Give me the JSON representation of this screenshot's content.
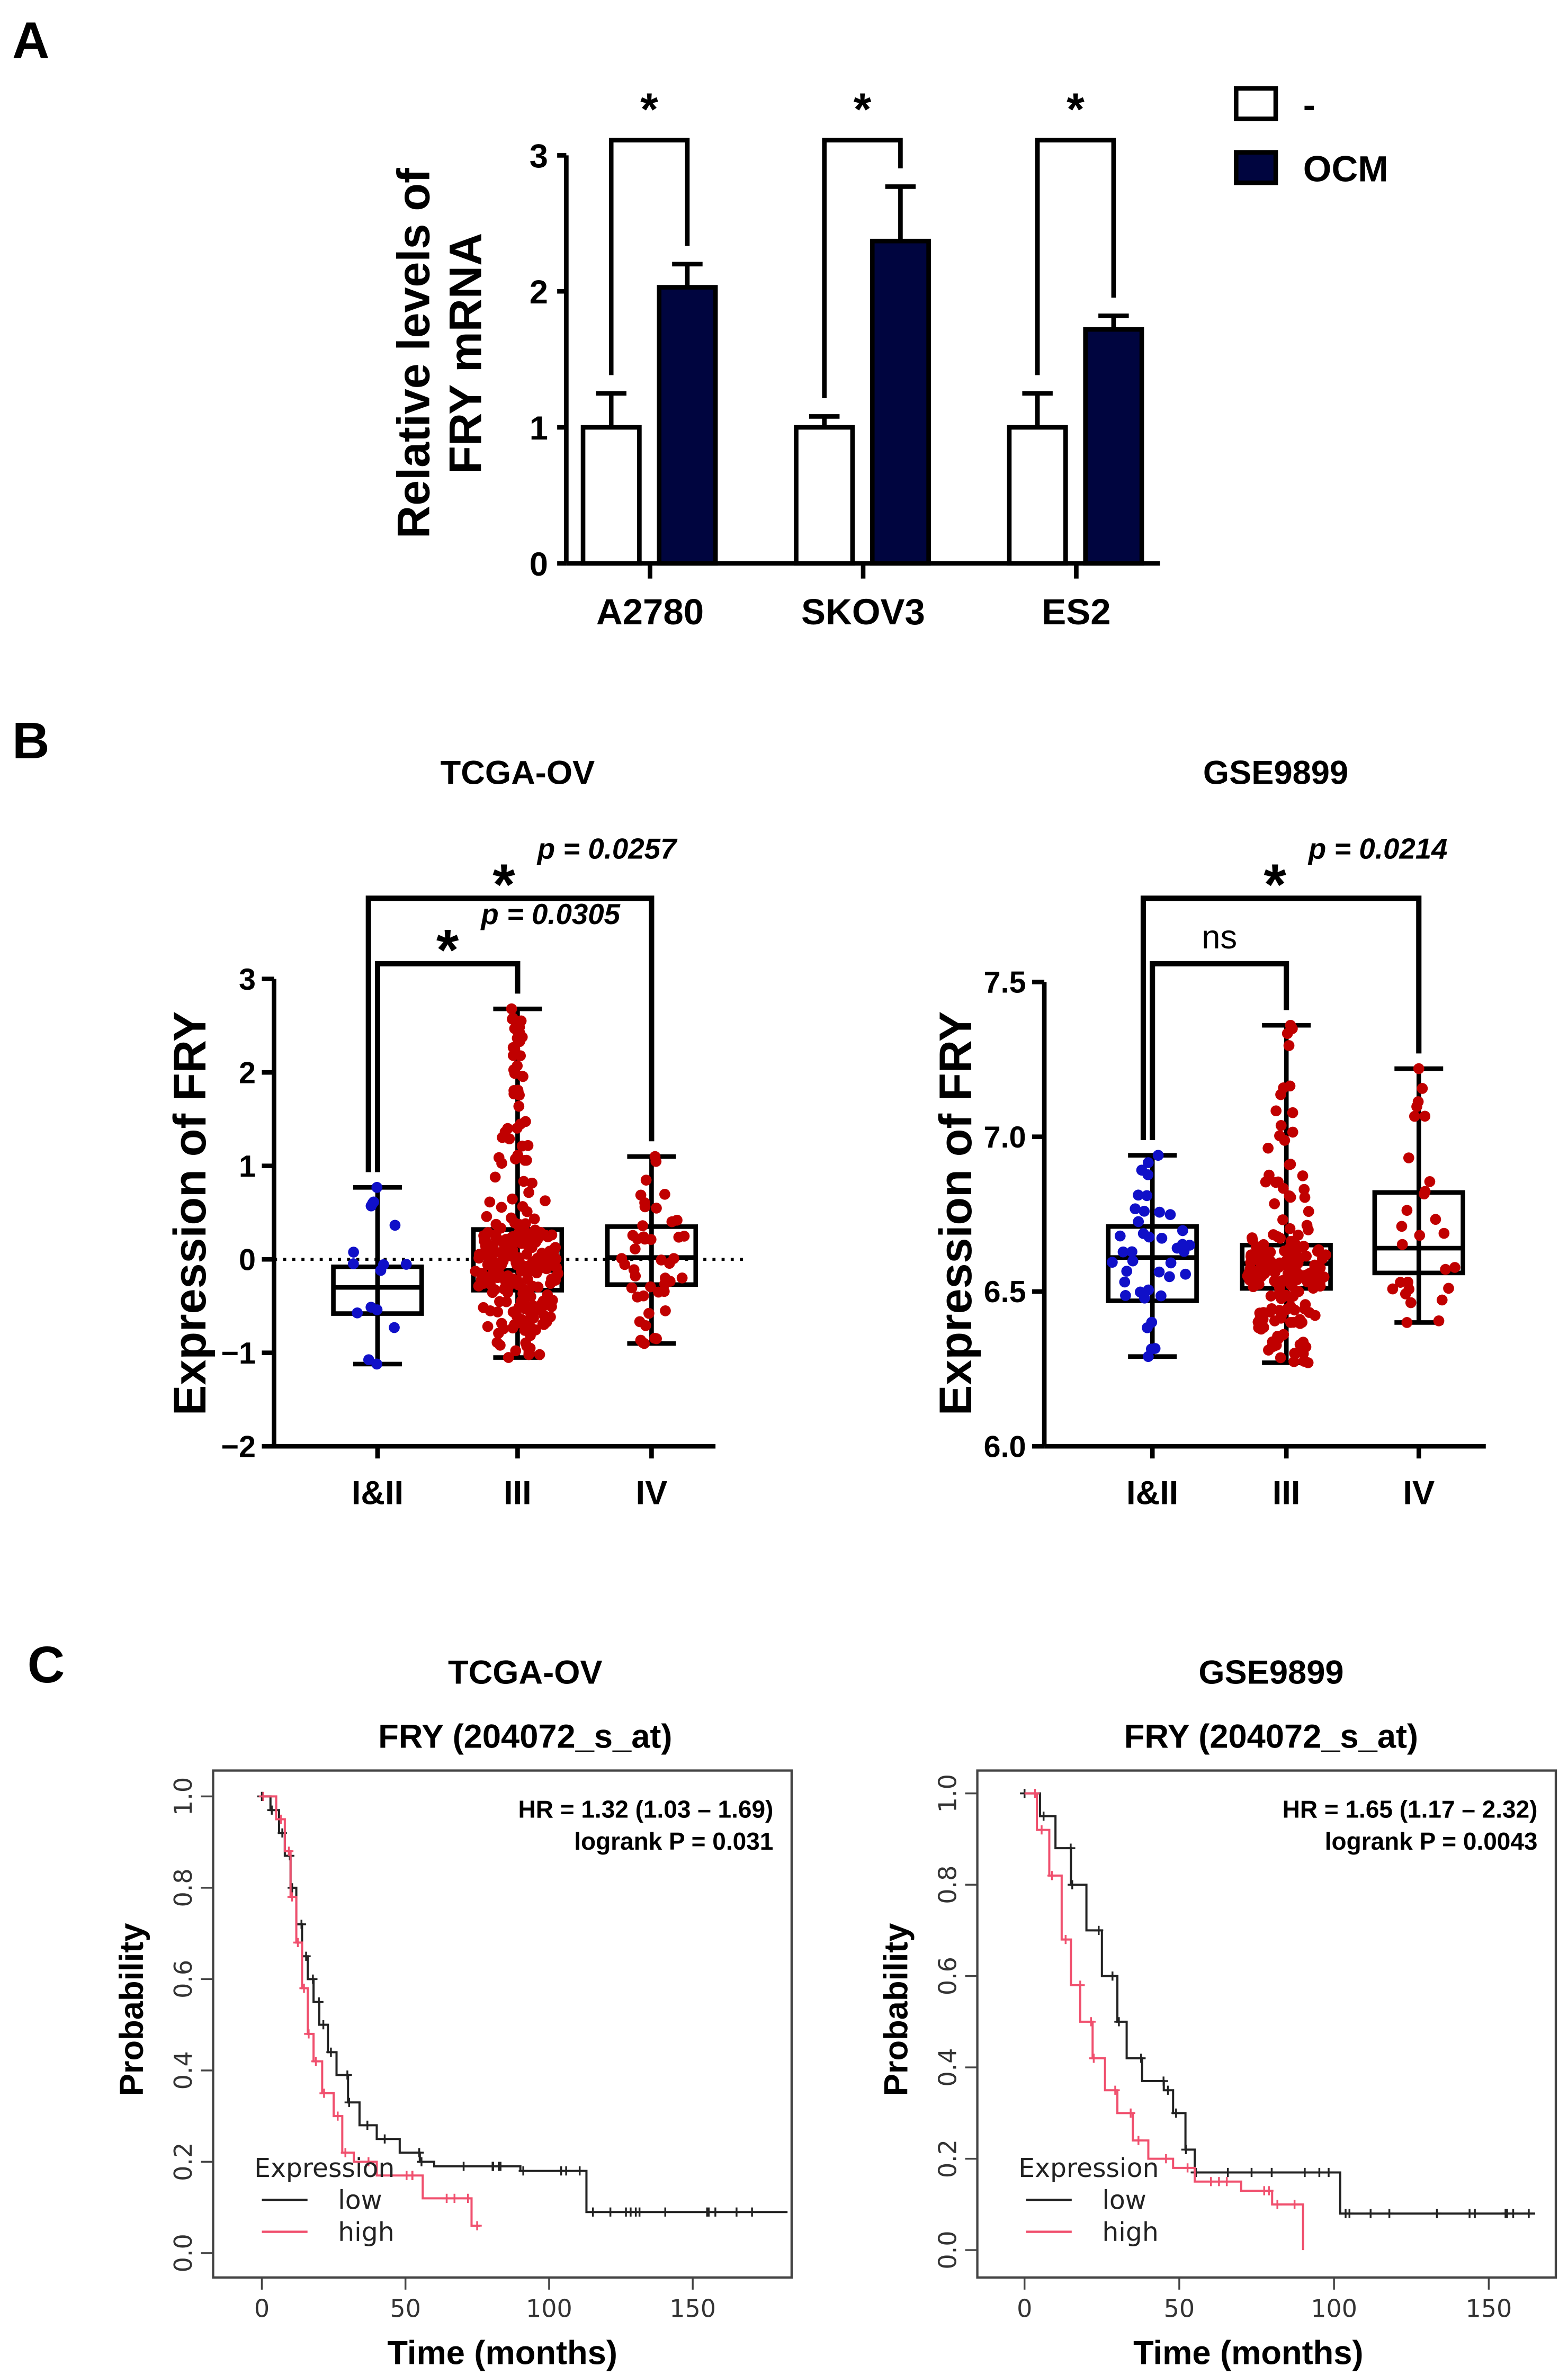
{
  "panel_labels": [
    "A",
    "B",
    "C"
  ],
  "chart_data": [
    {
      "id": "A",
      "type": "bar",
      "ylabel_lines": [
        "Relative levels of",
        "FRY mRNA"
      ],
      "categories": [
        "A2780",
        "SKOV3",
        "ES2"
      ],
      "ylim": [
        0,
        3
      ],
      "yticks": [
        "0",
        "1",
        "2",
        "3"
      ],
      "series": [
        {
          "name": "-",
          "color": "#ffffff",
          "values": [
            1.0,
            1.0,
            1.0
          ],
          "errors": [
            0.25,
            0.08,
            0.25
          ]
        },
        {
          "name": "OCM",
          "color": "#00053f",
          "values": [
            2.03,
            2.37,
            1.72
          ],
          "errors": [
            0.17,
            0.4,
            0.1
          ]
        }
      ],
      "significance": [
        "*",
        "*",
        "*"
      ]
    },
    {
      "id": "B-left",
      "type": "box-scatter",
      "title": "TCGA-OV",
      "ylabel": "Expression of FRY",
      "ylim": [
        -2,
        3
      ],
      "yticks": [
        "−2",
        "−1",
        "0",
        "1",
        "2",
        "3"
      ],
      "categories": [
        "I&II",
        "III",
        "IV"
      ],
      "colors": [
        "#1010c8",
        "#c00000",
        "#c00000"
      ],
      "boxes": [
        {
          "min": -1.12,
          "q1": -0.58,
          "median": -0.3,
          "q3": -0.08,
          "max": 0.77,
          "n": 16
        },
        {
          "min": -1.05,
          "q1": -0.33,
          "median": -0.12,
          "q3": 0.32,
          "max": 2.68,
          "n": 250
        },
        {
          "min": -0.9,
          "q1": -0.27,
          "median": 0.02,
          "q3": 0.35,
          "max": 1.1,
          "n": 45
        }
      ],
      "reference_line": 0,
      "comparisons": [
        {
          "from": "I&II",
          "to": "III",
          "star": "*",
          "label": "p = 0.0305"
        },
        {
          "from": "I&II",
          "to": "IV",
          "star": "*",
          "label": "p = 0.0257"
        }
      ]
    },
    {
      "id": "B-right",
      "type": "box-scatter",
      "title": "GSE9899",
      "ylabel": "Expression of FRY",
      "ylim": [
        6.0,
        7.5
      ],
      "yticks": [
        "6.0",
        "6.5",
        "7.0",
        "7.5"
      ],
      "categories": [
        "I&II",
        "III",
        "IV"
      ],
      "colors": [
        "#1010c8",
        "#c00000",
        "#c00000"
      ],
      "boxes": [
        {
          "min": 6.29,
          "q1": 6.47,
          "median": 6.61,
          "q3": 6.71,
          "max": 6.94,
          "n": 40
        },
        {
          "min": 6.27,
          "q1": 6.51,
          "median": 6.59,
          "q3": 6.65,
          "max": 7.36,
          "n": 200
        },
        {
          "min": 6.4,
          "q1": 6.56,
          "median": 6.64,
          "q3": 6.82,
          "max": 7.22,
          "n": 28
        }
      ],
      "comparisons": [
        {
          "from": "I&II",
          "to": "III",
          "star": "ns",
          "label": ""
        },
        {
          "from": "I&II",
          "to": "IV",
          "star": "*",
          "label": "p = 0.0214"
        }
      ]
    },
    {
      "id": "C-left",
      "type": "line",
      "title": "TCGA-OV",
      "subtitle": "FRY (204072_s_at)",
      "xlabel": "Time (months)",
      "ylabel": "Probability",
      "xlim": [
        0,
        190
      ],
      "ylim": [
        0,
        1
      ],
      "xticks": [
        "0",
        "50",
        "100",
        "150"
      ],
      "yticks": [
        "0.0",
        "0.2",
        "0.4",
        "0.6",
        "0.8",
        "1.0"
      ],
      "annotation": [
        "HR = 1.32 (1.03 – 1.69)",
        "logrank P = 0.031"
      ],
      "legend_title": "Expression",
      "series": [
        {
          "name": "low",
          "color": "#222222",
          "points": [
            [
              0,
              1
            ],
            [
              3,
              0.97
            ],
            [
              6,
              0.92
            ],
            [
              8,
              0.87
            ],
            [
              10,
              0.8
            ],
            [
              12,
              0.72
            ],
            [
              14,
              0.65
            ],
            [
              16,
              0.6
            ],
            [
              18,
              0.55
            ],
            [
              20,
              0.5
            ],
            [
              23,
              0.44
            ],
            [
              26,
              0.39
            ],
            [
              30,
              0.33
            ],
            [
              34,
              0.28
            ],
            [
              40,
              0.25
            ],
            [
              48,
              0.22
            ],
            [
              55,
              0.2
            ],
            [
              60,
              0.19
            ],
            [
              90,
              0.18
            ],
            [
              113,
              0.09
            ],
            [
              183,
              0.09
            ]
          ]
        },
        {
          "name": "high",
          "color": "#f0506e",
          "points": [
            [
              0,
              1
            ],
            [
              5,
              0.95
            ],
            [
              8,
              0.88
            ],
            [
              10,
              0.78
            ],
            [
              12,
              0.68
            ],
            [
              14,
              0.58
            ],
            [
              16,
              0.48
            ],
            [
              18,
              0.42
            ],
            [
              21,
              0.35
            ],
            [
              25,
              0.3
            ],
            [
              28,
              0.22
            ],
            [
              32,
              0.2
            ],
            [
              40,
              0.17
            ],
            [
              56,
              0.12
            ],
            [
              73,
              0.06
            ],
            [
              76,
              0.06
            ]
          ]
        }
      ]
    },
    {
      "id": "C-right",
      "type": "line",
      "title": "GSE9899",
      "subtitle": "FRY (204072_s_at)",
      "xlabel": "Time (months)",
      "ylabel": "Probability",
      "xlim": [
        0,
        170
      ],
      "ylim": [
        0,
        1
      ],
      "xticks": [
        "0",
        "50",
        "100",
        "150"
      ],
      "yticks": [
        "0.0",
        "0.2",
        "0.4",
        "0.6",
        "0.8",
        "1.0"
      ],
      "annotation": [
        "HR = 1.65 (1.17 – 2.32)",
        "logrank P = 0.0043"
      ],
      "legend_title": "Expression",
      "series": [
        {
          "name": "low",
          "color": "#222222",
          "points": [
            [
              0,
              1
            ],
            [
              5,
              0.95
            ],
            [
              10,
              0.88
            ],
            [
              15,
              0.8
            ],
            [
              20,
              0.7
            ],
            [
              25,
              0.6
            ],
            [
              30,
              0.5
            ],
            [
              33,
              0.42
            ],
            [
              38,
              0.37
            ],
            [
              45,
              0.35
            ],
            [
              48,
              0.3
            ],
            [
              52,
              0.22
            ],
            [
              55,
              0.17
            ],
            [
              102,
              0.08
            ],
            [
              165,
              0.08
            ]
          ]
        },
        {
          "name": "high",
          "color": "#f0506e",
          "points": [
            [
              0,
              1
            ],
            [
              4,
              0.92
            ],
            [
              8,
              0.82
            ],
            [
              12,
              0.68
            ],
            [
              15,
              0.58
            ],
            [
              18,
              0.5
            ],
            [
              22,
              0.42
            ],
            [
              26,
              0.35
            ],
            [
              30,
              0.3
            ],
            [
              35,
              0.24
            ],
            [
              40,
              0.2
            ],
            [
              48,
              0.18
            ],
            [
              55,
              0.15
            ],
            [
              70,
              0.13
            ],
            [
              80,
              0.1
            ],
            [
              90,
              0.0
            ]
          ]
        }
      ]
    }
  ]
}
